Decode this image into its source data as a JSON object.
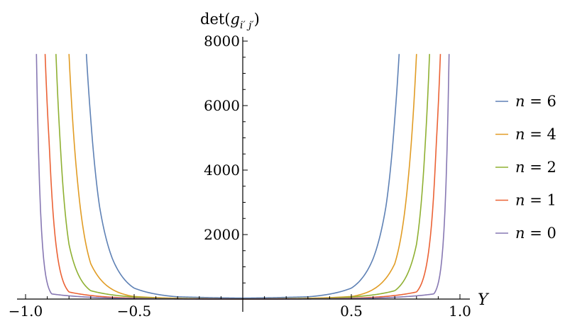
{
  "chart_data": {
    "type": "line",
    "xlabel": "Y",
    "ylabel": "det(g_{i′ j′})",
    "xlim": [
      -1.0,
      1.0
    ],
    "ylim": [
      0,
      8000
    ],
    "x_ticks": [
      {
        "value": -1.0,
        "label": "−1.0"
      },
      {
        "value": -0.5,
        "label": "−0.5"
      },
      {
        "value": 0.5,
        "label": "0.5"
      },
      {
        "value": 1.0,
        "label": "1.0"
      }
    ],
    "y_ticks": [
      {
        "value": 2000,
        "label": "2000"
      },
      {
        "value": 4000,
        "label": "4000"
      },
      {
        "value": 6000,
        "label": "6000"
      },
      {
        "value": 8000,
        "label": "8000"
      }
    ],
    "legend_position": "right",
    "series": [
      {
        "name": "n = 6",
        "color": "#5e81b5",
        "values_at": [
          [
            0.0,
            30
          ],
          [
            0.3,
            70
          ],
          [
            0.5,
            340
          ],
          [
            0.6,
            1250
          ],
          [
            0.66,
            2900
          ],
          [
            0.7,
            5600
          ],
          [
            0.72,
            7600
          ]
        ]
      },
      {
        "name": "n = 4",
        "color": "#e19c24",
        "values_at": [
          [
            0.0,
            4
          ],
          [
            0.5,
            80
          ],
          [
            0.7,
            1100
          ],
          [
            0.76,
            3600
          ],
          [
            0.8,
            7600
          ]
        ]
      },
      {
        "name": "n = 2",
        "color": "#8fb032",
        "values_at": [
          [
            0.0,
            1
          ],
          [
            0.7,
            260
          ],
          [
            0.8,
            1700
          ],
          [
            0.84,
            4800
          ],
          [
            0.86,
            7600
          ]
        ]
      },
      {
        "name": "n = 1",
        "color": "#eb6235",
        "values_at": [
          [
            0.0,
            0
          ],
          [
            0.8,
            220
          ],
          [
            0.86,
            1700
          ],
          [
            0.89,
            4700
          ],
          [
            0.91,
            7600
          ]
        ]
      },
      {
        "name": "n = 0",
        "color": "#8778b3",
        "values_at": [
          [
            0.0,
            0
          ],
          [
            0.88,
            160
          ],
          [
            0.92,
            1500
          ],
          [
            0.94,
            4500
          ],
          [
            0.95,
            7600
          ]
        ]
      }
    ],
    "note_symmetric": "curves are symmetric about Y = 0"
  }
}
